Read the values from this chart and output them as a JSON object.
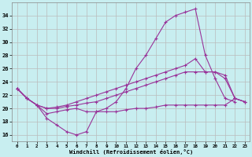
{
  "xlabel": "Windchill (Refroidissement éolien,°C)",
  "bg_color": "#c8eef0",
  "grid_color": "#aaaaaa",
  "line_color": "#993399",
  "x": [
    0,
    1,
    2,
    3,
    4,
    5,
    6,
    7,
    8,
    9,
    10,
    11,
    12,
    13,
    14,
    15,
    16,
    17,
    18,
    19,
    20,
    21,
    22,
    23
  ],
  "ylim": [
    15.0,
    36.0
  ],
  "yticks": [
    16,
    18,
    20,
    22,
    24,
    26,
    28,
    30,
    32,
    34
  ],
  "series1": [
    23.0,
    21.5,
    20.5,
    18.5,
    17.5,
    16.5,
    16.0,
    16.5,
    19.5,
    20.0,
    21.0,
    23.0,
    26.0,
    28.0,
    30.5,
    33.0,
    34.0,
    34.5,
    35.0,
    28.0,
    24.5,
    21.5,
    21.0,
    null
  ],
  "series2": [
    23.0,
    21.5,
    20.5,
    20.0,
    20.2,
    20.5,
    21.0,
    21.5,
    22.0,
    22.5,
    23.0,
    23.5,
    24.0,
    24.5,
    25.0,
    25.5,
    26.0,
    26.5,
    27.5,
    25.5,
    25.5,
    24.5,
    21.5,
    21.0
  ],
  "series3": [
    23.0,
    21.5,
    20.5,
    20.0,
    20.0,
    20.3,
    20.5,
    20.8,
    21.0,
    21.5,
    22.0,
    22.5,
    23.0,
    23.5,
    24.0,
    24.5,
    25.0,
    25.5,
    25.5,
    25.5,
    25.5,
    25.0,
    21.5,
    21.0
  ],
  "series4": [
    23.0,
    21.5,
    20.5,
    19.2,
    19.5,
    19.8,
    20.0,
    19.5,
    19.5,
    19.5,
    19.5,
    19.8,
    20.0,
    20.0,
    20.2,
    20.5,
    20.5,
    20.5,
    20.5,
    20.5,
    20.5,
    20.5,
    21.5,
    21.0
  ]
}
